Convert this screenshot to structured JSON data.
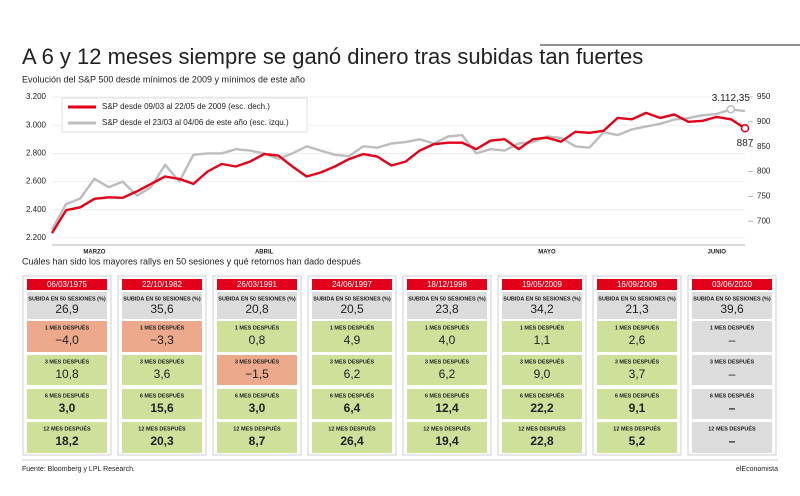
{
  "chart_data": {
    "type": "line",
    "title": "A 6 y 12 meses siempre se ganó dinero tras subidas tan fuertes",
    "subtitle": "Evolución del S&P 500 desde mínimos de 2009 y mínimos de este año",
    "categories": [
      null,
      null,
      null,
      "MARZO",
      null,
      null,
      null,
      null,
      null,
      null,
      null,
      null,
      null,
      null,
      null,
      "ABRIL",
      null,
      null,
      null,
      null,
      null,
      null,
      null,
      null,
      null,
      null,
      null,
      null,
      null,
      null,
      null,
      null,
      null,
      null,
      null,
      "MAYO",
      null,
      null,
      null,
      null,
      null,
      null,
      null,
      null,
      null,
      null,
      null,
      "JUNIO",
      null,
      null
    ],
    "series": [
      {
        "name": "S&P desde 09/03 al 22/05 de 2009 (esc. dech.)",
        "color": "#e2001a",
        "axis": "y2",
        "values": [
          676,
          722,
          728,
          745,
          748,
          747,
          760,
          775,
          790,
          785,
          775,
          800,
          815,
          810,
          820,
          835,
          832,
          810,
          790,
          798,
          810,
          825,
          835,
          830,
          812,
          820,
          842,
          855,
          858,
          858,
          845,
          862,
          865,
          845,
          865,
          868,
          860,
          880,
          878,
          882,
          908,
          905,
          918,
          908,
          915,
          900,
          902,
          910,
          905,
          887
        ],
        "value_labels": [
          null,
          null,
          null,
          null,
          null,
          null,
          null,
          null,
          null,
          null,
          null,
          null,
          null,
          null,
          null,
          null,
          null,
          null,
          null,
          null,
          null,
          null,
          null,
          null,
          null,
          null,
          null,
          null,
          null,
          null,
          null,
          null,
          null,
          null,
          null,
          null,
          null,
          null,
          null,
          null,
          null,
          null,
          null,
          null,
          null,
          null,
          null,
          null,
          null,
          "887"
        ]
      },
      {
        "name": "S&P desde el 23/03 al 04/06 de este año (esc. izqu.)",
        "color": "#bdbdbd",
        "axis": "y",
        "values": [
          2260,
          2440,
          2480,
          2620,
          2560,
          2600,
          2500,
          2560,
          2720,
          2600,
          2790,
          2800,
          2800,
          2830,
          2820,
          2800,
          2760,
          2800,
          2850,
          2820,
          2790,
          2780,
          2850,
          2840,
          2870,
          2880,
          2900,
          2870,
          2920,
          2930,
          2800,
          2830,
          2820,
          2870,
          2880,
          2920,
          2910,
          2850,
          2840,
          2950,
          2930,
          2970,
          2990,
          3010,
          3040,
          3050,
          3070,
          3080,
          3112.35,
          3100
        ],
        "value_labels": [
          null,
          null,
          null,
          null,
          null,
          null,
          null,
          null,
          null,
          null,
          null,
          null,
          null,
          null,
          null,
          null,
          null,
          null,
          null,
          null,
          null,
          null,
          null,
          null,
          null,
          null,
          null,
          null,
          null,
          null,
          null,
          null,
          null,
          null,
          null,
          null,
          null,
          null,
          null,
          null,
          null,
          null,
          null,
          null,
          null,
          null,
          null,
          null,
          "3.112,35",
          null
        ]
      }
    ],
    "ylim": [
      2150,
      3200
    ],
    "yticks": [
      {
        "value": 2200,
        "label": "2.200"
      },
      {
        "value": 2400,
        "label": "2.400"
      },
      {
        "value": 2600,
        "label": "2.600"
      },
      {
        "value": 2800,
        "label": "2.800"
      },
      {
        "value": 3000,
        "label": "3.000"
      },
      {
        "value": 3200,
        "label": "3.200"
      }
    ],
    "y2lim": [
      652,
      950
    ],
    "y2ticks": [
      700,
      750,
      800,
      850,
      900,
      950
    ],
    "grid": true,
    "legend": "top-left"
  },
  "table": {
    "title": "Cuáles han sido los mayores rallys en 50 sesiones y qué retornos han dado después",
    "row_labels": [
      "SUBIDA EN 50 SESIONES (%)",
      "1 MES DESPUÉS",
      "3 MES DESPUÉS",
      "6 MES DESPUÉS",
      "12 MES DESPUÉS"
    ],
    "bold_rows": [
      3,
      4
    ],
    "cards": [
      {
        "date": "06/03/1975",
        "cells": [
          "26,9",
          "−4,0",
          "10,8",
          "3,0",
          "18,2"
        ],
        "colors": [
          "#dcdcdc",
          "#eca98b",
          "#cfe09b",
          "#cfe09b",
          "#cfe09b"
        ]
      },
      {
        "date": "22/10/1982",
        "cells": [
          "35,6",
          "−3,3",
          "3,6",
          "15,6",
          "20,3"
        ],
        "colors": [
          "#dcdcdc",
          "#eca98b",
          "#cfe09b",
          "#cfe09b",
          "#cfe09b"
        ]
      },
      {
        "date": "26/03/1991",
        "cells": [
          "20,8",
          "0,8",
          "−1,5",
          "3,0",
          "8,7"
        ],
        "colors": [
          "#dcdcdc",
          "#cfe09b",
          "#eca98b",
          "#cfe09b",
          "#cfe09b"
        ]
      },
      {
        "date": "24/06/1997",
        "cells": [
          "20,5",
          "4,9",
          "6,2",
          "6,4",
          "26,4"
        ],
        "colors": [
          "#dcdcdc",
          "#cfe09b",
          "#cfe09b",
          "#cfe09b",
          "#cfe09b"
        ]
      },
      {
        "date": "18/12/1998",
        "cells": [
          "23,8",
          "4,0",
          "6,2",
          "12,4",
          "19,4"
        ],
        "colors": [
          "#dcdcdc",
          "#cfe09b",
          "#cfe09b",
          "#cfe09b",
          "#cfe09b"
        ]
      },
      {
        "date": "19/05/2009",
        "cells": [
          "34,2",
          "1,1",
          "9,0",
          "22,2",
          "22,8"
        ],
        "colors": [
          "#dcdcdc",
          "#cfe09b",
          "#cfe09b",
          "#cfe09b",
          "#cfe09b"
        ]
      },
      {
        "date": "16/09/2009",
        "cells": [
          "21,3",
          "2,6",
          "3,7",
          "9,1",
          "5,2"
        ],
        "colors": [
          "#dcdcdc",
          "#cfe09b",
          "#cfe09b",
          "#cfe09b",
          "#cfe09b"
        ]
      },
      {
        "date": "03/06/2020",
        "cells": [
          "39,6",
          "–",
          "–",
          "–",
          "–"
        ],
        "colors": [
          "#dcdcdc",
          "#dcdcdc",
          "#dcdcdc",
          "#dcdcdc",
          "#dcdcdc"
        ]
      }
    ]
  },
  "source": "Fuente: Bloomberg y LPL Research.",
  "brand": "elEconomista"
}
